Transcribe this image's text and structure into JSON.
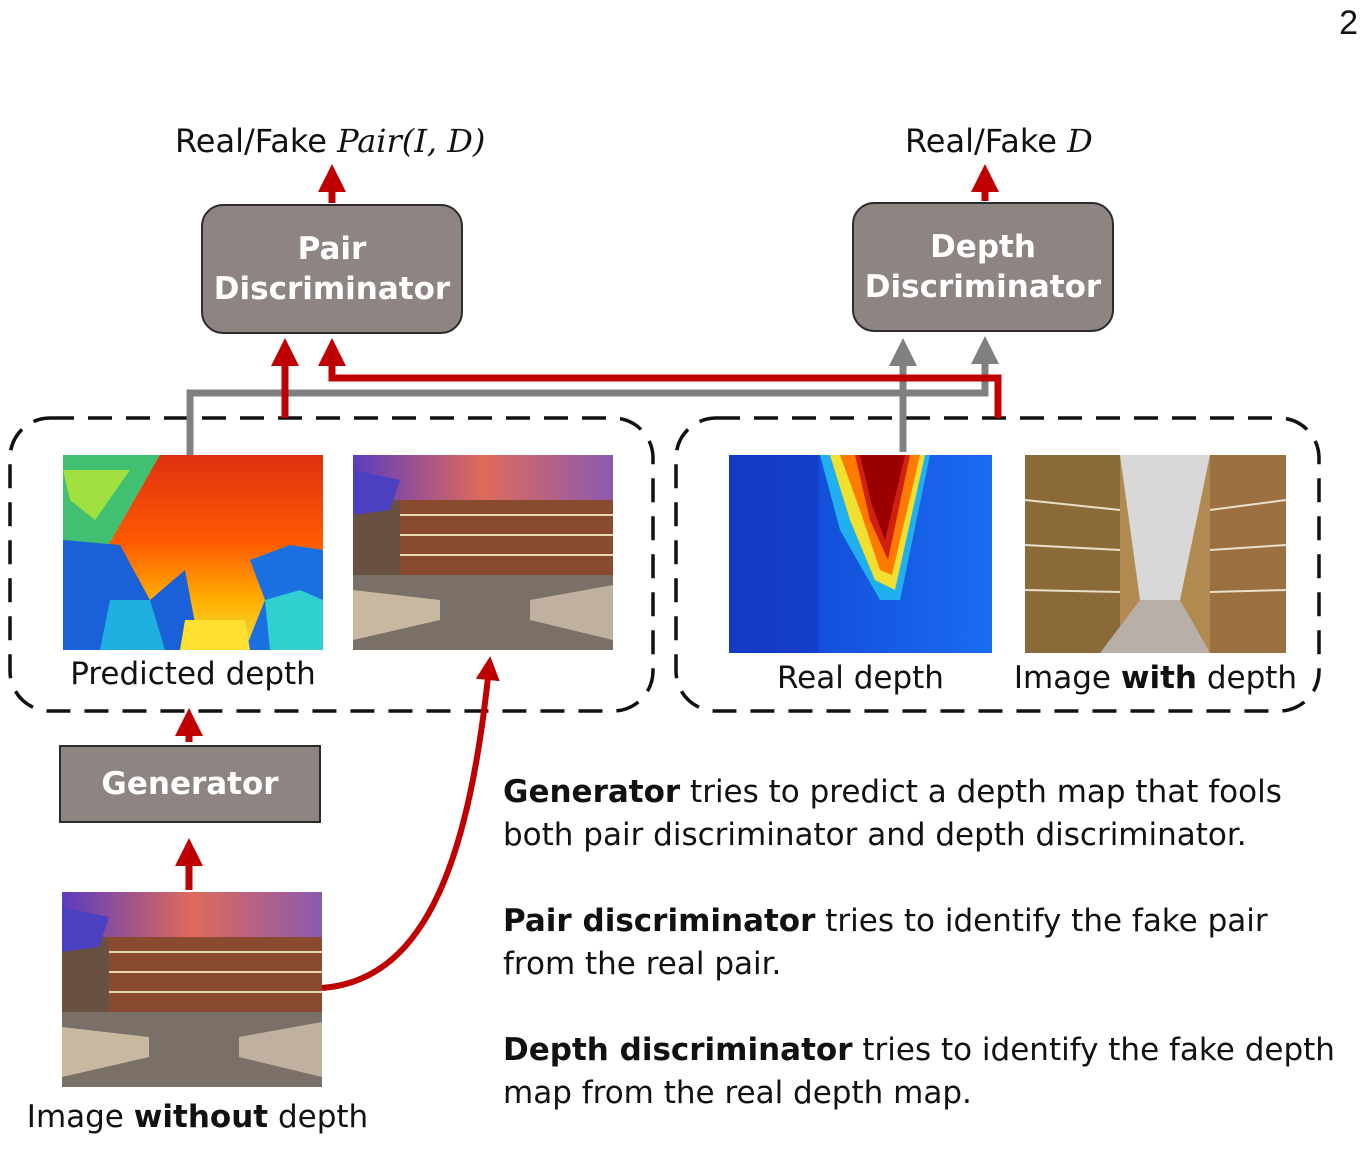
{
  "page_number": "2",
  "outputs": {
    "pair": {
      "prefix": "Real/Fake ",
      "math": "Pair(I, D)"
    },
    "depth": {
      "prefix": "Real/Fake ",
      "math": "D"
    }
  },
  "boxes": {
    "pair_discriminator": {
      "line1": "Pair",
      "line2": "Discriminator"
    },
    "depth_discriminator": {
      "line1": "Depth",
      "line2": "Discriminator"
    },
    "generator": "Generator"
  },
  "captions": {
    "predicted_depth": "Predicted depth",
    "real_depth": "Real depth",
    "image_with_depth": {
      "pre": "Image ",
      "bold": "with",
      "post": " depth"
    },
    "image_without_depth": {
      "pre": "Image ",
      "bold": "without",
      "post": " depth"
    }
  },
  "descriptions": [
    {
      "bold": "Generator",
      "text": " tries to predict a depth map that fools both pair discriminator and depth discriminator."
    },
    {
      "bold": "Pair discriminator",
      "text": " tries to identify the fake pair from the real pair."
    },
    {
      "bold": "Depth discriminator",
      "text": " tries to identify the fake depth map from the real depth map."
    }
  ],
  "colors": {
    "red_arrow": "#c00000",
    "gray_arrow": "#808080",
    "box_fill": "#8e8482"
  },
  "icons": [
    "predicted-depth-map",
    "bookstore-photo",
    "real-depth-map",
    "library-aisle-photo"
  ]
}
